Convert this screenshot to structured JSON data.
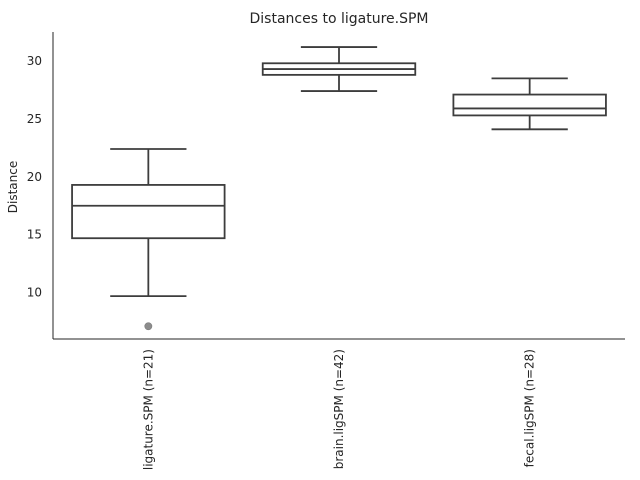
{
  "chart_data": {
    "type": "box",
    "title": "Distances to ligature.SPM",
    "xlabel": "",
    "ylabel": "Distance",
    "ylim": [
      6,
      32.5
    ],
    "yticks": [
      10,
      15,
      20,
      25,
      30
    ],
    "grid": false,
    "categories": [
      "ligature.SPM (n=21)",
      "brain.ligSPM (n=42)",
      "fecal.ligSPM (n=28)"
    ],
    "boxes": [
      {
        "category": "ligature.SPM (n=21)",
        "whisker_low": 9.7,
        "q1": 14.7,
        "median": 17.5,
        "q3": 19.3,
        "whisker_high": 22.4,
        "outliers": [
          7.1
        ]
      },
      {
        "category": "brain.ligSPM (n=42)",
        "whisker_low": 27.4,
        "q1": 28.8,
        "median": 29.3,
        "q3": 29.8,
        "whisker_high": 31.2,
        "outliers": []
      },
      {
        "category": "fecal.ligSPM (n=28)",
        "whisker_low": 24.1,
        "q1": 25.3,
        "median": 25.9,
        "q3": 27.1,
        "whisker_high": 28.5,
        "outliers": []
      }
    ],
    "colors": {
      "line": "#3d3d3d",
      "outlier": "#8c8c8c",
      "box_fill": "#ffffff"
    }
  }
}
